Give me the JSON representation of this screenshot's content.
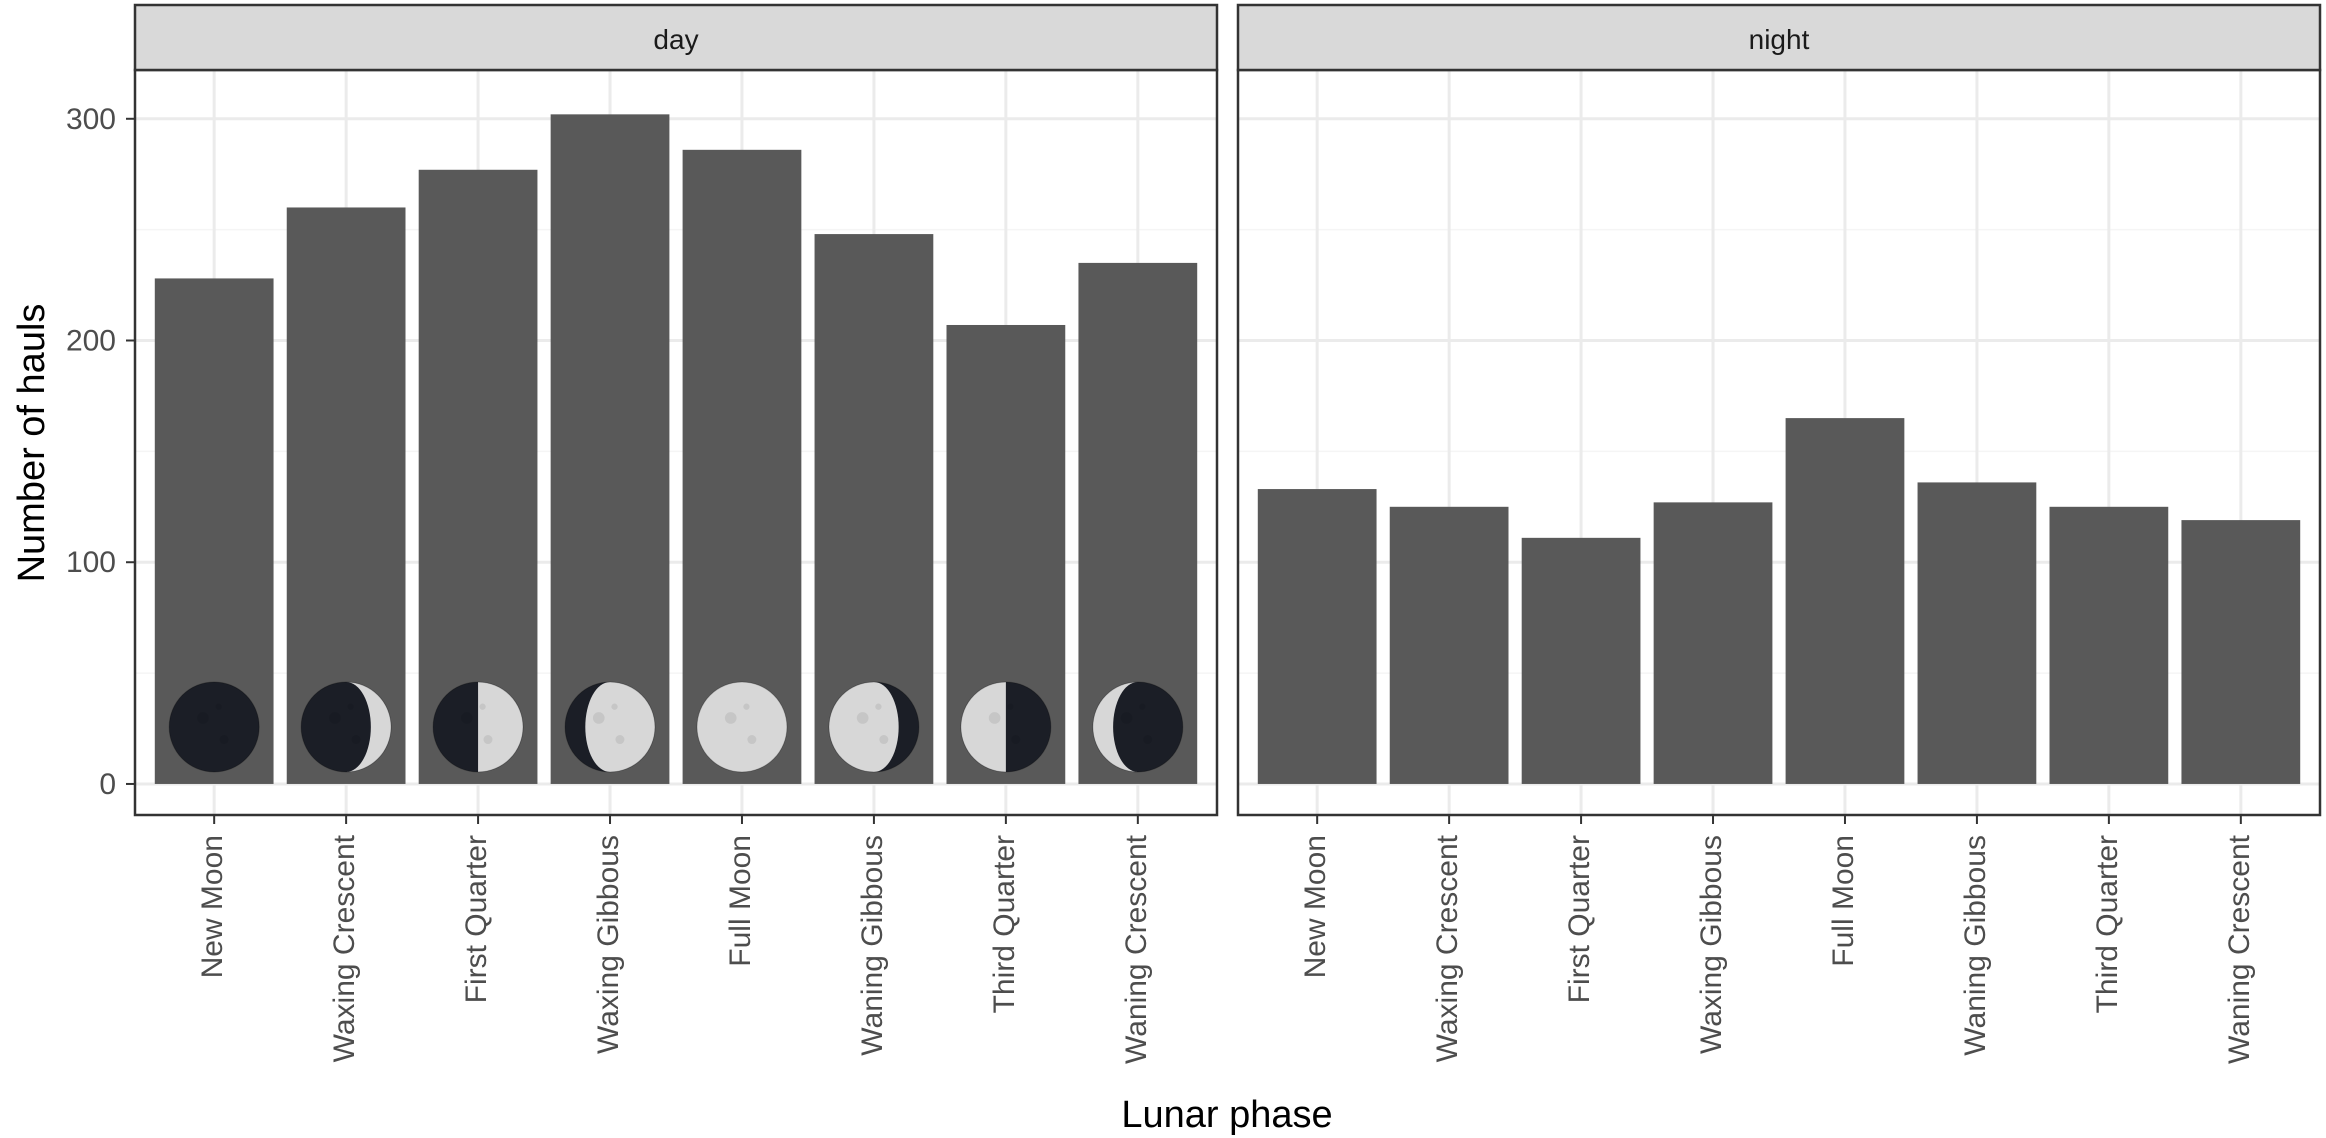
{
  "chart_data": {
    "type": "bar",
    "xlabel": "Lunar phase",
    "ylabel": "Number of hauls",
    "ylim": [
      -14,
      322
    ],
    "yticks": [
      0,
      100,
      200,
      300
    ],
    "grid": true,
    "facets": [
      {
        "label": "day",
        "categories": [
          "New Moon",
          "Waxing Crescent",
          "First Quarter",
          "Waxing Gibbous",
          "Full Moon",
          "Waning Gibbous",
          "Third Quarter",
          "Waning Crescent"
        ],
        "values": [
          228,
          260,
          277,
          302,
          286,
          248,
          207,
          235
        ],
        "moon_icons": [
          "new-moon",
          "waxing-crescent",
          "first-quarter",
          "waxing-gibbous",
          "full-moon",
          "waning-gibbous",
          "third-quarter",
          "waning-crescent"
        ]
      },
      {
        "label": "night",
        "categories": [
          "New Moon",
          "Waxing Crescent",
          "First Quarter",
          "Waxing Gibbous",
          "Full Moon",
          "Waning Gibbous",
          "Third Quarter",
          "Waning Crescent"
        ],
        "values": [
          133,
          125,
          111,
          127,
          165,
          136,
          125,
          119
        ]
      }
    ],
    "colors": {
      "bar": "#595959",
      "strip": "#d9d9d9",
      "grid_major": "#ebebeb",
      "grid_minor": "#f5f5f5",
      "panel_border": "#333333",
      "moon_dark": "#1b1e26",
      "moon_light": "#d7d7d7"
    }
  }
}
